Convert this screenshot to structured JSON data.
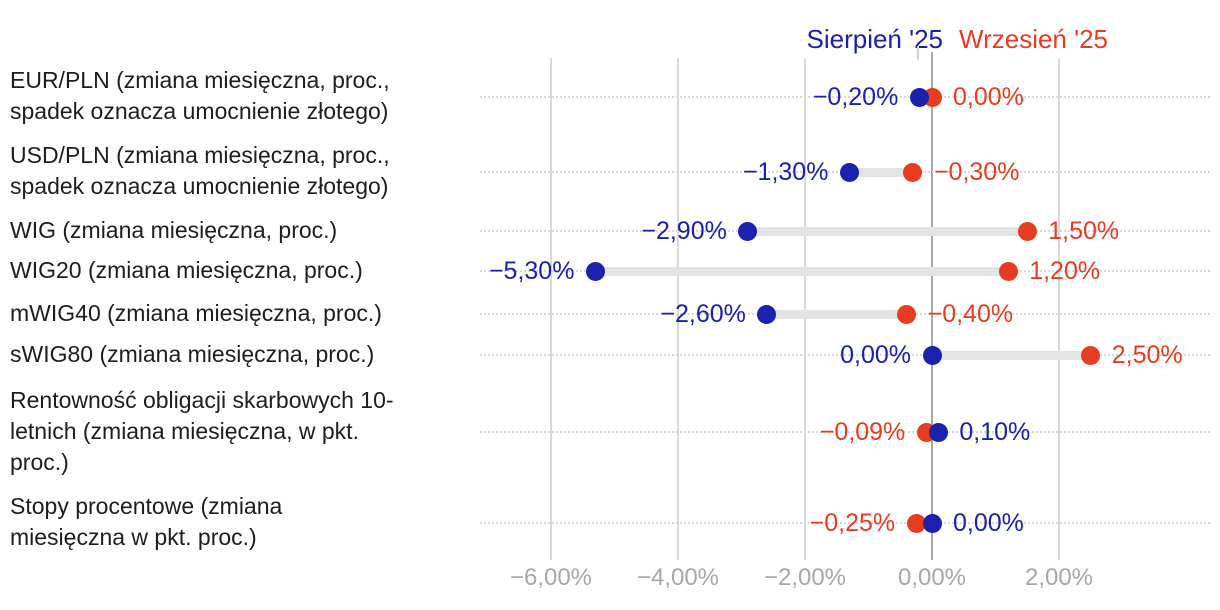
{
  "legend": {
    "series1": "Sierpień '25",
    "series2": "Wrzesień '25"
  },
  "colors": {
    "august": "#1a21ac",
    "september": "#e63d20",
    "connector": "#e3e3e3",
    "gridline": "#d9d9d9",
    "zero_line": "#a8a8a8",
    "row_dotted": "#d8d8d8",
    "axis_text": "#a7a7a7",
    "category_text": "#1d1d1d"
  },
  "chart_data": {
    "type": "scatter",
    "subtype": "horizontal-dumbbell",
    "title": "",
    "xlabel": "",
    "ylabel": "",
    "xlim": [
      -7.1,
      4.4
    ],
    "grid": true,
    "legend_position": "top-right",
    "categories": [
      "EUR/PLN (zmiana miesięczna, proc.,\nspadek oznacza umocnienie złotego)",
      "USD/PLN (zmiana miesięczna, proc.,\nspadek oznacza umocnienie złotego)",
      "WIG (zmiana miesięczna, proc.)",
      "WIG20 (zmiana miesięczna, proc.)",
      "mWIG40 (zmiana miesięczna, proc.)",
      "sWIG80 (zmiana miesięczna, proc.)",
      "Rentowność obligacji skarbowych 10-\nletnich (zmiana miesięczna, w pkt.\nproc.)",
      "Stopy procentowe (zmiana\nmiesięczna w pkt. proc.)"
    ],
    "series": [
      {
        "name": "Sierpień '25",
        "color": "#1a21ac",
        "values": [
          -0.2,
          -1.3,
          -2.9,
          -5.3,
          -2.6,
          0.0,
          0.1,
          0.0
        ],
        "labels": [
          "−0,20%",
          "−1,30%",
          "−2,90%",
          "−5,30%",
          "−2,60%",
          "0,00%",
          "0,10%",
          "0,00%"
        ]
      },
      {
        "name": "Wrzesień '25",
        "color": "#e63d20",
        "values": [
          0.0,
          -0.3,
          1.5,
          1.2,
          -0.4,
          2.5,
          -0.09,
          -0.25
        ],
        "labels": [
          "0,00%",
          "−0,30%",
          "1,50%",
          "1,20%",
          "−0,40%",
          "2,50%",
          "−0,09%",
          "−0,25%"
        ]
      }
    ],
    "x_ticks": {
      "values": [
        -6,
        -4,
        -2,
        0,
        2
      ],
      "labels": [
        "−6,00%",
        "−4,00%",
        "−2,00%",
        "0,00%",
        "2,00%"
      ]
    }
  }
}
